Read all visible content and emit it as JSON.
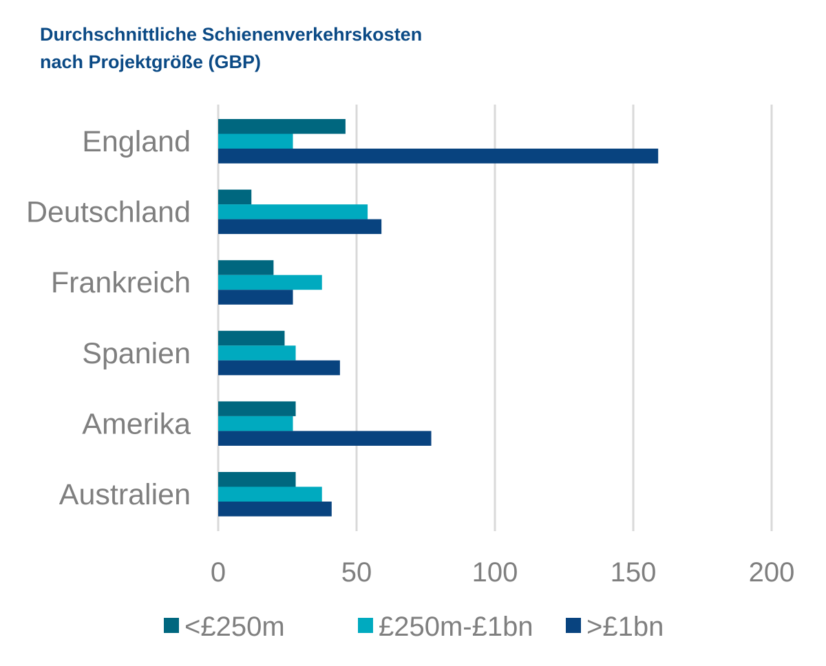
{
  "chart_data": {
    "type": "bar",
    "orientation": "horizontal",
    "title_lines": [
      "Durchschnittliche Schienenverkehrskosten",
      "nach Projektgröße (GBP)"
    ],
    "categories": [
      "England",
      "Deutschland",
      "Frankreich",
      "Spanien",
      "Amerika",
      "Australien"
    ],
    "series": [
      {
        "name": "<£250m",
        "color": "#00677F",
        "values": [
          46,
          12,
          20,
          24,
          28,
          28
        ]
      },
      {
        "name": "£250m-£1bn",
        "color": "#00AABF",
        "values": [
          27,
          54,
          37.5,
          28,
          27,
          37.5
        ]
      },
      {
        "name": ">£1bn",
        "color": "#08437F",
        "values": [
          159,
          59,
          27,
          44,
          77,
          41
        ]
      }
    ],
    "xlim": [
      0,
      200
    ],
    "xticks": [
      "0",
      "50",
      "100",
      "150",
      "200"
    ],
    "xtick_values": [
      0,
      50,
      100,
      150,
      200
    ],
    "grid": true,
    "legend_position": "bottom"
  }
}
